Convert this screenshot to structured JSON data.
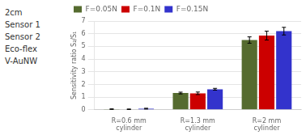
{
  "chart_data": {
    "type": "bar",
    "categories": [
      "R=0.6 mm\ncylinder",
      "R=1.3 mm\ncylinder",
      "R=2 mm\ncylinder"
    ],
    "series": [
      {
        "name": "F=0.05N",
        "color": "#556B2F",
        "values": [
          0.05,
          1.32,
          5.5
        ],
        "errors": [
          0.02,
          0.07,
          0.25
        ]
      },
      {
        "name": "F=0.1N",
        "color": "#CC0000",
        "values": [
          0.04,
          1.3,
          5.85
        ],
        "errors": [
          0.02,
          0.1,
          0.35
        ]
      },
      {
        "name": "F=0.15N",
        "color": "#3333CC",
        "values": [
          0.09,
          1.62,
          6.2
        ],
        "errors": [
          0.03,
          0.07,
          0.3
        ]
      }
    ],
    "ylabel": "Sensitivity ratio S₂/S₁",
    "ylim": [
      0,
      7
    ],
    "yticks": [
      0,
      1,
      2,
      3,
      4,
      5,
      6,
      7
    ],
    "grid": true,
    "legend": "upper left",
    "annotations": [
      "2cm",
      "Sensor 1",
      "Sensor 2",
      "Eco-flex",
      "V-AuNW"
    ]
  }
}
